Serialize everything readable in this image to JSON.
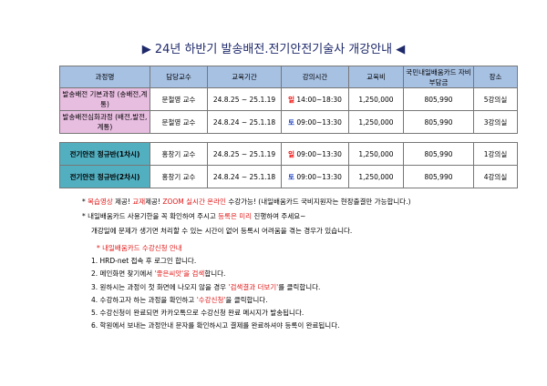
{
  "title": "▶ 24년 하반기 발송배전.전기안전기술사 개강안내 ◀",
  "table": {
    "headers": [
      "과정명",
      "담당교수",
      "교육기간",
      "강의시간",
      "교육비",
      "국민내일배움카드 자비부담금",
      "장소"
    ],
    "rows": [
      {
        "course": "발송배전 기본과정 (송배전,계통)",
        "prof": "문철영 교수",
        "period": "24.8.25 ~ 25.1.19",
        "day": "일",
        "time": "14:00~18:30",
        "fee": "1,250,000",
        "self_pay": "805,990",
        "room": "5강의실"
      },
      {
        "course": "발송배전심화과정 (배전,발전,계통)",
        "prof": "문철영 교수",
        "period": "24.8.24 ~ 25.1.18",
        "day": "토",
        "time": "09:00~13:30",
        "fee": "1,250,000",
        "self_pay": "805,990",
        "room": "3강의실"
      },
      {
        "course": "전기안전 정규반(1차시)",
        "prof": "홍창기 교수",
        "period": "24.8.25 ~ 25.1.19",
        "day": "일",
        "time": "09:00~13:30",
        "fee": "1,250,000",
        "self_pay": "805,990",
        "room": "1강의실"
      },
      {
        "course": "전기안전 정규반(2차시)",
        "prof": "홍창기 교수",
        "period": "24.8.24 ~ 25.1.18",
        "day": "토",
        "time": "09:00~13:30",
        "fee": "1,250,000",
        "self_pay": "805,990",
        "room": "4강의실"
      }
    ]
  },
  "notes": {
    "n1": [
      "* ",
      "복습영상",
      " 제공! ",
      "교재",
      "제공! ",
      "ZOOM 실시간 온라인",
      " 수강가능! (내일배움카드 국비지원자는 현장출결만 가능합니다.)"
    ],
    "n2": [
      "* 내일배움카드 사용기한을 꼭 확인하여 주시고 ",
      "등록은 미리",
      " 진행하여 주세요~"
    ],
    "n3": "개강일에 문제가 생기면 처리할 수 있는 시간이 없어 등록시 어려움을 겪는 경우가 있습니다."
  },
  "steps": {
    "heading": "* 내일배움카드 수강신청 안내",
    "s1": "1. HRD-net 접속 후 로그인 합니다.",
    "s2": [
      "2. 메인화면 찾기에서 ",
      "'좋은씨앗'을 검색",
      "합니다."
    ],
    "s3": [
      "3. 원하시는 과정이 첫 화면에 나오지 않을 경우 ",
      "'검색결과 더보기'",
      "를 클릭합니다."
    ],
    "s4": [
      "4. 수강하고자 하는 과정을 확인하고 ",
      "'수강신청'",
      "을 클릭합니다."
    ],
    "s5": "5. 수강신청이 완료되면 카카오톡으로 수강신청 완료 메시지가 발송됩니다.",
    "s6": "6. 학원에서 보내는 과정안내 문자를 확인하시고 결제를 완료하셔야 등록이 완료됩니다."
  },
  "colors": {
    "header": "#a7c1e3",
    "pink": "#e7bde0",
    "teal": "#52afc0",
    "accent_red": "#e01818"
  }
}
